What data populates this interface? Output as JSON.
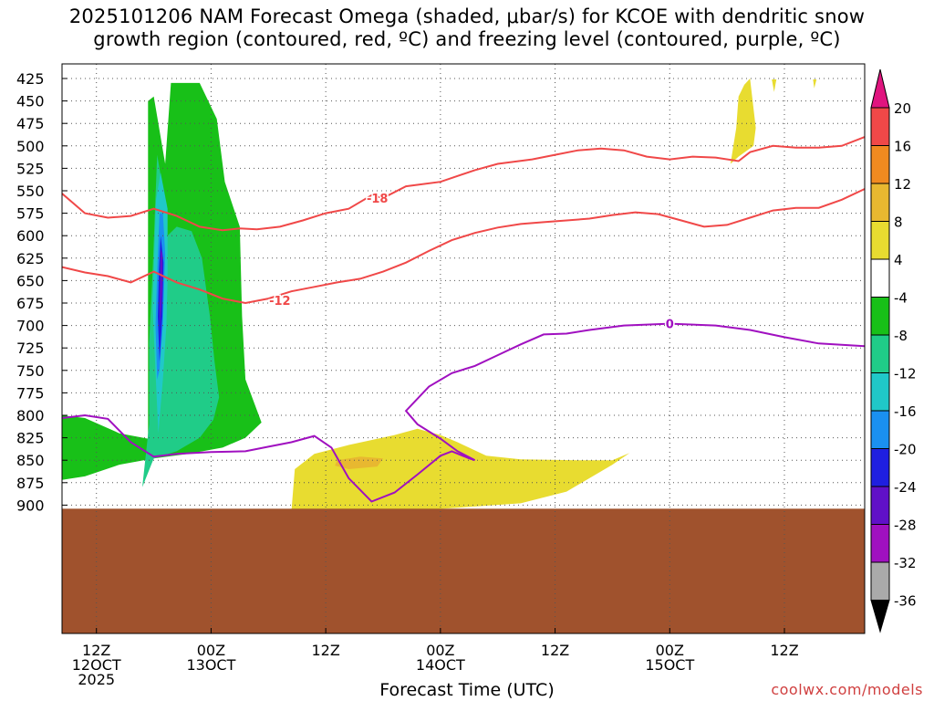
{
  "chart_data": {
    "type": "heatmap",
    "title_line1": "2025101206 NAM Forecast Omega (shaded, μbar/s) for KCOE with dendritic snow",
    "title_line2": "growth region (contoured, red, ºC) and freezing level (contoured, purple, ºC)",
    "xlabel": "Forecast Time (UTC)",
    "credit": "coolwx.com/models",
    "x_range_hours": [
      -3,
      67
    ],
    "y_levels_hpa": [
      425,
      450,
      475,
      500,
      525,
      550,
      575,
      600,
      625,
      650,
      675,
      700,
      725,
      750,
      775,
      800,
      825,
      850,
      875,
      900
    ],
    "x_ticks": [
      {
        "hour": 0,
        "line1": "12Z",
        "line2": "12OCT",
        "line3": "2025"
      },
      {
        "hour": 10,
        "line1": "00Z",
        "line2": "13OCT",
        "line3": ""
      },
      {
        "hour": 20,
        "line1": "12Z",
        "line2": "",
        "line3": ""
      },
      {
        "hour": 30,
        "line1": "00Z",
        "line2": "14OCT",
        "line3": ""
      },
      {
        "hour": 40,
        "line1": "12Z",
        "line2": "",
        "line3": ""
      },
      {
        "hour": 50,
        "line1": "00Z",
        "line2": "15OCT",
        "line3": ""
      },
      {
        "hour": 60,
        "line1": "12Z",
        "line2": "",
        "line3": ""
      }
    ],
    "colorbar": {
      "labels": [
        "20",
        "16",
        "12",
        "8",
        "4",
        "-4",
        "-8",
        "-12",
        "-16",
        "-20",
        "-24",
        "-28",
        "-32",
        "-36"
      ],
      "colors": [
        "#e0157f",
        "#f04848",
        "#f08a20",
        "#e8b830",
        "#e8dc30",
        "#ffffff",
        "#18c018",
        "#20cc88",
        "#20c8c8",
        "#1a90f0",
        "#1f1fe0",
        "#6010c8",
        "#a010c0",
        "#aaaaaa",
        "#000000"
      ]
    },
    "series": [
      {
        "name": "Omega -8 to -4 (green)",
        "color": "#18c018",
        "points": [
          [
            -3,
            800
          ],
          [
            -1,
            803
          ],
          [
            2,
            820
          ],
          [
            4.5,
            826
          ],
          [
            4.5,
            450
          ],
          [
            5,
            445
          ],
          [
            6,
            520
          ],
          [
            6.5,
            430
          ],
          [
            9,
            430
          ],
          [
            10.5,
            470
          ],
          [
            11.2,
            540
          ],
          [
            12.5,
            590
          ],
          [
            12.7,
            690
          ],
          [
            13,
            760
          ],
          [
            14.4,
            808
          ],
          [
            13,
            825
          ],
          [
            11,
            836
          ],
          [
            8,
            843
          ],
          [
            5,
            848
          ],
          [
            2,
            855
          ],
          [
            -1,
            868
          ],
          [
            -3,
            872
          ]
        ]
      },
      {
        "name": "Omega -12 to -8 (teal)",
        "color": "#20cc88",
        "points": [
          [
            4,
            880
          ],
          [
            4.6,
            810
          ],
          [
            4.6,
            720
          ],
          [
            4.9,
            640
          ],
          [
            5.3,
            510
          ],
          [
            5.7,
            540
          ],
          [
            6.2,
            600
          ],
          [
            7,
            590
          ],
          [
            8.3,
            595
          ],
          [
            9.2,
            625
          ],
          [
            9.9,
            690
          ],
          [
            10.3,
            740
          ],
          [
            10.7,
            780
          ],
          [
            10.2,
            805
          ],
          [
            9,
            825
          ],
          [
            7,
            840
          ],
          [
            5,
            848
          ]
        ]
      },
      {
        "name": "Omega -16 to -12 (cyan)",
        "color": "#20c8c8",
        "points": [
          [
            4.9,
            680
          ],
          [
            5.1,
            600
          ],
          [
            5.2,
            560
          ],
          [
            5.6,
            530
          ],
          [
            6.2,
            570
          ],
          [
            6.2,
            650
          ],
          [
            6.1,
            700
          ],
          [
            5.8,
            760
          ],
          [
            5.4,
            820
          ]
        ]
      },
      {
        "name": "Omega -20 to -16 (blue)",
        "color": "#1a90f0",
        "points": [
          [
            5.15,
            700
          ],
          [
            5.3,
            640
          ],
          [
            5.5,
            575
          ],
          [
            5.8,
            575
          ],
          [
            6.0,
            620
          ],
          [
            5.8,
            700
          ],
          [
            5.5,
            750
          ],
          [
            5.3,
            760
          ]
        ]
      },
      {
        "name": "Omega -24 to -20 (dark blue)",
        "color": "#1f1fe0",
        "points": [
          [
            5.35,
            690
          ],
          [
            5.45,
            640
          ],
          [
            5.6,
            600
          ],
          [
            5.85,
            630
          ],
          [
            5.75,
            690
          ],
          [
            5.5,
            740
          ]
        ]
      },
      {
        "name": "Omega -28 to -24 (purple)",
        "color": "#6010c8",
        "points": [
          [
            5.5,
            680
          ],
          [
            5.6,
            615
          ],
          [
            5.75,
            620
          ],
          [
            5.75,
            660
          ],
          [
            5.55,
            700
          ]
        ]
      },
      {
        "name": "Omega 4 to 8 (yellow, low levels)",
        "color": "#e8dc30",
        "points": [
          [
            17,
            908
          ],
          [
            17.3,
            860
          ],
          [
            19,
            843
          ],
          [
            22,
            833
          ],
          [
            26,
            822
          ],
          [
            28,
            815
          ],
          [
            30,
            822
          ],
          [
            31.5,
            830
          ],
          [
            34,
            845
          ],
          [
            37,
            849
          ],
          [
            42,
            850
          ],
          [
            45,
            850
          ],
          [
            46.5,
            842
          ],
          [
            45,
            855
          ],
          [
            41,
            885
          ],
          [
            37,
            898
          ],
          [
            28,
            906
          ],
          [
            20,
            908
          ]
        ]
      },
      {
        "name": "Omega 4 to 8 (yellow, upper)",
        "color": "#e8dc30",
        "points": [
          [
            55.3,
            520
          ],
          [
            55.8,
            480
          ],
          [
            56,
            445
          ],
          [
            56.5,
            432
          ],
          [
            57,
            425
          ],
          [
            57.5,
            480
          ],
          [
            57.3,
            500
          ],
          [
            56,
            512
          ]
        ]
      },
      {
        "name": "Omega 4 to 8 (yellow, sliver)",
        "color": "#e8dc30",
        "points": [
          [
            58.9,
            426
          ],
          [
            59.3,
            426
          ],
          [
            59.1,
            440
          ]
        ]
      },
      {
        "name": "Omega 4 to 8 (yellow, sliver 2)",
        "color": "#e8dc30",
        "points": [
          [
            62.5,
            426
          ],
          [
            62.8,
            426
          ],
          [
            62.6,
            436
          ]
        ]
      },
      {
        "name": "Omega 8 to 12 (orange)",
        "color": "#e8b830",
        "points": [
          [
            21,
            850
          ],
          [
            23,
            846
          ],
          [
            25,
            848
          ],
          [
            24.5,
            857
          ],
          [
            22,
            860
          ],
          [
            20.8,
            856
          ]
        ]
      },
      {
        "name": "DGZ -18C isotherm (red)",
        "color": "#f04848",
        "label": "-18",
        "label_at": [
          24.5,
          558
        ],
        "points": [
          [
            -3,
            553
          ],
          [
            -1,
            575
          ],
          [
            1,
            580
          ],
          [
            3,
            578
          ],
          [
            5,
            570
          ],
          [
            7,
            578
          ],
          [
            9,
            590
          ],
          [
            11,
            594
          ],
          [
            12.5,
            592
          ],
          [
            14,
            593
          ],
          [
            16,
            590
          ],
          [
            18,
            583
          ],
          [
            20,
            575
          ],
          [
            22,
            570
          ],
          [
            24,
            555
          ],
          [
            25,
            558
          ],
          [
            27,
            545
          ],
          [
            30,
            540
          ],
          [
            33,
            527
          ],
          [
            35,
            520
          ],
          [
            38,
            515
          ],
          [
            40,
            510
          ],
          [
            42,
            505
          ],
          [
            44,
            503
          ],
          [
            46,
            505
          ],
          [
            48,
            512
          ],
          [
            50,
            515
          ],
          [
            52,
            512
          ],
          [
            54,
            513
          ],
          [
            56,
            517
          ],
          [
            57,
            507
          ],
          [
            59,
            500
          ],
          [
            61,
            502
          ],
          [
            63,
            502
          ],
          [
            65,
            500
          ],
          [
            67,
            490
          ]
        ]
      },
      {
        "name": "DGZ -12C isotherm (red)",
        "color": "#f04848",
        "label": "-12",
        "label_at": [
          16,
          672
        ],
        "points": [
          [
            -3,
            635
          ],
          [
            -1,
            641
          ],
          [
            1,
            645
          ],
          [
            3,
            652
          ],
          [
            5,
            640
          ],
          [
            7,
            652
          ],
          [
            9,
            660
          ],
          [
            11,
            670
          ],
          [
            13,
            675
          ],
          [
            15,
            670
          ],
          [
            17,
            662
          ],
          [
            19,
            657
          ],
          [
            21,
            652
          ],
          [
            23,
            648
          ],
          [
            25,
            640
          ],
          [
            27,
            630
          ],
          [
            29,
            617
          ],
          [
            31,
            605
          ],
          [
            33,
            597
          ],
          [
            35,
            591
          ],
          [
            37,
            587
          ],
          [
            39,
            585
          ],
          [
            41,
            583
          ],
          [
            43,
            581
          ],
          [
            45,
            577
          ],
          [
            47,
            574
          ],
          [
            49,
            576
          ],
          [
            51,
            583
          ],
          [
            53,
            590
          ],
          [
            55,
            588
          ],
          [
            57,
            580
          ],
          [
            59,
            572
          ],
          [
            61,
            569
          ],
          [
            63,
            569
          ],
          [
            65,
            560
          ],
          [
            67,
            548
          ]
        ]
      },
      {
        "name": "Freezing level 0C (purple)",
        "color": "#a010c0",
        "label": "0",
        "label_at": [
          50,
          698
        ],
        "points": [
          [
            -3,
            803
          ],
          [
            -1,
            800
          ],
          [
            1,
            804
          ],
          [
            3,
            830
          ],
          [
            5,
            846
          ],
          [
            7,
            843
          ],
          [
            10,
            841
          ],
          [
            13,
            840
          ],
          [
            15,
            835
          ],
          [
            17,
            830
          ],
          [
            19,
            823
          ],
          [
            20.5,
            836
          ],
          [
            22,
            870
          ],
          [
            24,
            896
          ],
          [
            26,
            886
          ],
          [
            28,
            866
          ],
          [
            30,
            845
          ],
          [
            31,
            840
          ],
          [
            32.5,
            848
          ],
          [
            33,
            850
          ],
          [
            31.5,
            840
          ],
          [
            30,
            826
          ],
          [
            28,
            810
          ],
          [
            27,
            795
          ],
          [
            29,
            768
          ],
          [
            31,
            753
          ],
          [
            33,
            745
          ],
          [
            35,
            733
          ],
          [
            37,
            721
          ],
          [
            39,
            710
          ],
          [
            41,
            709
          ],
          [
            43,
            705
          ],
          [
            46,
            700
          ],
          [
            50,
            698
          ],
          [
            54,
            700
          ],
          [
            57,
            705
          ],
          [
            60,
            713
          ],
          [
            63,
            720
          ],
          [
            67,
            723
          ]
        ]
      }
    ]
  }
}
